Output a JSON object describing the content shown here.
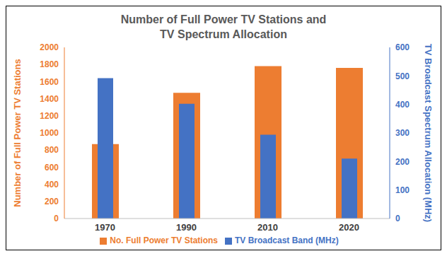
{
  "chart_data": {
    "type": "bar",
    "title": "Number of Full Power TV Stations and TV Spectrum Allocation",
    "categories": [
      "1970",
      "1990",
      "2010",
      "2020"
    ],
    "series": [
      {
        "name": "No. Full Power TV Stations",
        "color": "#ED7D31",
        "values": [
          870,
          1470,
          1780,
          1760
        ]
      },
      {
        "name": "TV Broadcast Band (MHz)",
        "color": "#4472C4",
        "values": [
          492,
          402,
          294,
          210
        ],
        "axis": "y2"
      }
    ],
    "y_label": "Number of Full Power TV Stations",
    "y2_label": "TV Broadcast Spectrum Allocation (MHz)",
    "ylim": [
      0,
      2000
    ],
    "yticks": [
      0,
      200,
      400,
      600,
      800,
      1000,
      1200,
      1400,
      1600,
      1800,
      2000
    ],
    "y2lim": [
      0,
      600
    ],
    "y2ticks": [
      0,
      100,
      200,
      300,
      400,
      500,
      600
    ],
    "grid": false,
    "legend": "bottom"
  }
}
